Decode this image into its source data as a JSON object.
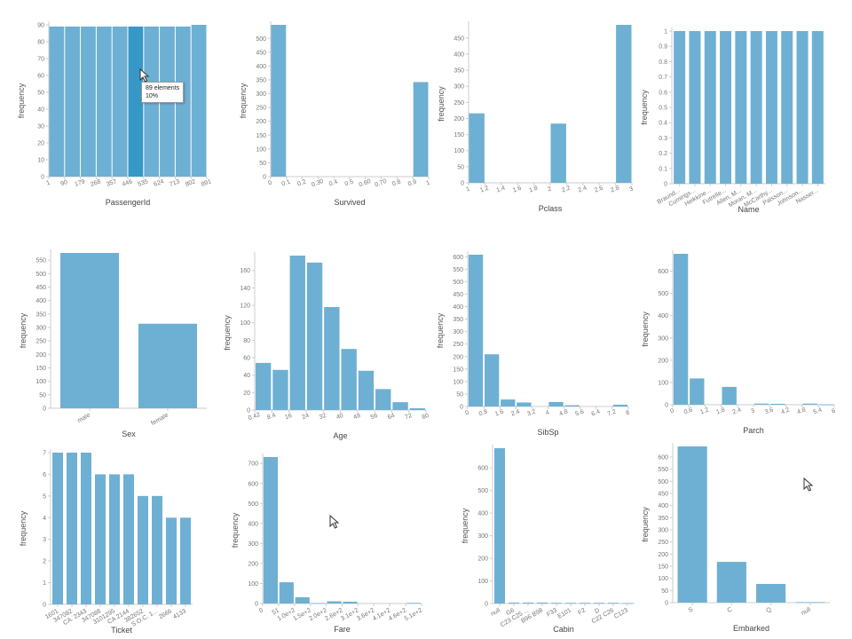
{
  "colors": {
    "bar": "#6eb0d3",
    "bar_highlight": "#3798c7",
    "axis": "#cccccc"
  },
  "tooltip": {
    "line1": "89 elements",
    "line2": "10%"
  },
  "chart_data": [
    {
      "type": "bar",
      "xlabel": "PassengerId",
      "ylabel": "frequency",
      "ylim": [
        0,
        90
      ],
      "yticks": [
        0,
        10,
        20,
        30,
        40,
        50,
        60,
        70,
        80,
        90
      ],
      "xticks": [
        "1",
        "90",
        "179",
        "268",
        "357",
        "446",
        "535",
        "624",
        "713",
        "802",
        "891"
      ],
      "xtick_mode": "edges",
      "values": [
        89,
        89,
        89,
        89,
        89,
        89,
        89,
        89,
        89,
        90
      ],
      "highlight": 5
    },
    {
      "type": "bar",
      "xlabel": "Survived",
      "ylabel": "frequency",
      "ylim": [
        0,
        549
      ],
      "yticks": [
        0,
        50,
        100,
        150,
        200,
        250,
        300,
        350,
        400,
        450,
        500
      ],
      "xticks": [
        "0",
        "0.1",
        "0.2",
        "0.30",
        "0.4",
        "0.5",
        "0.60",
        "0.70",
        "0.8",
        "0.9",
        "1"
      ],
      "xtick_mode": "edges",
      "values": [
        549,
        0,
        0,
        0,
        0,
        0,
        0,
        0,
        0,
        342
      ]
    },
    {
      "type": "bar",
      "xlabel": "Pclass",
      "ylabel": "frequency",
      "ylim": [
        0,
        491
      ],
      "yticks": [
        0,
        50,
        100,
        150,
        200,
        250,
        300,
        350,
        400,
        450
      ],
      "xticks": [
        "1",
        "1.2",
        "1.4",
        "1.6",
        "1.8",
        "2",
        "2.2",
        "2.4",
        "2.6",
        "2.8",
        "3"
      ],
      "xtick_mode": "edges",
      "values": [
        216,
        0,
        0,
        0,
        0,
        184,
        0,
        0,
        0,
        491
      ]
    },
    {
      "type": "bar",
      "xlabel": "Name",
      "ylabel": "frequency",
      "ylim": [
        0,
        1
      ],
      "yticks": [
        0,
        0.1,
        0.2,
        0.3,
        0.4,
        0.5,
        0.6,
        0.7,
        0.8,
        0.9,
        1
      ],
      "xticks": [
        "Braund...",
        "Cumings...",
        "Heikkine...",
        "Futrelle...",
        "Allen, M...",
        "Moran, M...",
        "McCarthy...",
        "Palsson...",
        "Johnson...",
        "Nasser..."
      ],
      "xtick_mode": "centers_rot",
      "values": [
        1,
        1,
        1,
        1,
        1,
        1,
        1,
        1,
        1,
        1
      ]
    },
    {
      "type": "bar",
      "xlabel": "Sex",
      "ylabel": "frequency",
      "ylim": [
        0,
        577
      ],
      "yticks": [
        0,
        50,
        100,
        150,
        200,
        250,
        300,
        350,
        400,
        450,
        500,
        550
      ],
      "xticks": [
        "male",
        "female"
      ],
      "xtick_mode": "centers_rot",
      "values": [
        577,
        314
      ]
    },
    {
      "type": "bar",
      "xlabel": "Age",
      "ylabel": "frequency",
      "ylim": [
        0,
        177
      ],
      "yticks": [
        0,
        20,
        40,
        60,
        80,
        100,
        120,
        140,
        160
      ],
      "xticks": [
        "0.42",
        "8.4",
        "16",
        "24",
        "32",
        "40",
        "48",
        "56",
        "64",
        "72",
        "80"
      ],
      "xtick_mode": "edges",
      "values": [
        54,
        46,
        177,
        169,
        118,
        70,
        45,
        24,
        9,
        2
      ]
    },
    {
      "type": "bar",
      "xlabel": "SibSp",
      "ylabel": "frequency",
      "ylim": [
        0,
        608
      ],
      "yticks": [
        0,
        50,
        100,
        150,
        200,
        250,
        300,
        350,
        400,
        450,
        500,
        550,
        600
      ],
      "xticks": [
        "0",
        "0.8",
        "1.6",
        "2.4",
        "3.2",
        "4",
        "4.8",
        "5.6",
        "6.4",
        "7.2",
        "8"
      ],
      "xtick_mode": "edges",
      "values": [
        608,
        209,
        28,
        16,
        0,
        18,
        5,
        0,
        0,
        7
      ]
    },
    {
      "type": "bar",
      "xlabel": "Parch",
      "ylabel": "frequency",
      "ylim": [
        0,
        678
      ],
      "yticks": [
        0,
        100,
        200,
        300,
        400,
        500,
        600
      ],
      "xticks": [
        "0",
        "0.6",
        "1.2",
        "1.8",
        "2.4",
        "3",
        "3.6",
        "4.2",
        "4.8",
        "5.4",
        "6"
      ],
      "xtick_mode": "edges",
      "values": [
        678,
        118,
        0,
        80,
        0,
        5,
        4,
        0,
        5,
        1
      ]
    },
    {
      "type": "bar",
      "xlabel": "Ticket",
      "ylabel": "frequency",
      "ylim": [
        0,
        7
      ],
      "yticks": [
        0,
        1,
        2,
        3,
        4,
        5,
        6,
        7
      ],
      "xticks": [
        "1601",
        "347082",
        "CA. 2343",
        "347088",
        "3101295",
        "CA 2144",
        "382652",
        "S.O.C. 1...",
        "2666",
        "4133"
      ],
      "xtick_mode": "centers_rot",
      "values": [
        7,
        7,
        7,
        6,
        6,
        6,
        5,
        5,
        4,
        4
      ]
    },
    {
      "type": "bar",
      "xlabel": "Fare",
      "ylabel": "frequency",
      "ylim": [
        0,
        732
      ],
      "yticks": [
        0,
        100,
        200,
        300,
        400,
        500,
        600,
        700
      ],
      "xticks": [
        "0",
        "51",
        "1.0e+2",
        "1.5e+2",
        "2.0e+2",
        "2.6e+2",
        "3.1e+2",
        "3.6e+2",
        "4.1e+2",
        "4.6e+2",
        "5.1e+2"
      ],
      "xtick_mode": "edges_rot",
      "values": [
        732,
        106,
        31,
        2,
        11,
        9,
        0,
        0,
        0,
        3
      ]
    },
    {
      "type": "bar",
      "xlabel": "Cabin",
      "ylabel": "frequency",
      "ylim": [
        0,
        687
      ],
      "yticks": [
        0,
        100,
        200,
        300,
        400,
        500,
        600
      ],
      "xticks": [
        "null",
        "G6",
        "C23 C25 ...",
        "B96 B98",
        "F33",
        "E101",
        "F2",
        "D",
        "C22 C26",
        "C123"
      ],
      "xtick_mode": "centers_rot",
      "values": [
        687,
        4,
        4,
        4,
        3,
        3,
        3,
        3,
        3,
        2
      ]
    },
    {
      "type": "bar",
      "xlabel": "Embarked",
      "ylabel": "frequency",
      "ylim": [
        0,
        644
      ],
      "yticks": [
        0,
        50,
        100,
        150,
        200,
        250,
        300,
        350,
        400,
        450,
        500,
        550,
        600
      ],
      "xticks": [
        "S",
        "C",
        "Q",
        "null"
      ],
      "xtick_mode": "centers_rot",
      "values": [
        644,
        168,
        77,
        2
      ]
    }
  ]
}
